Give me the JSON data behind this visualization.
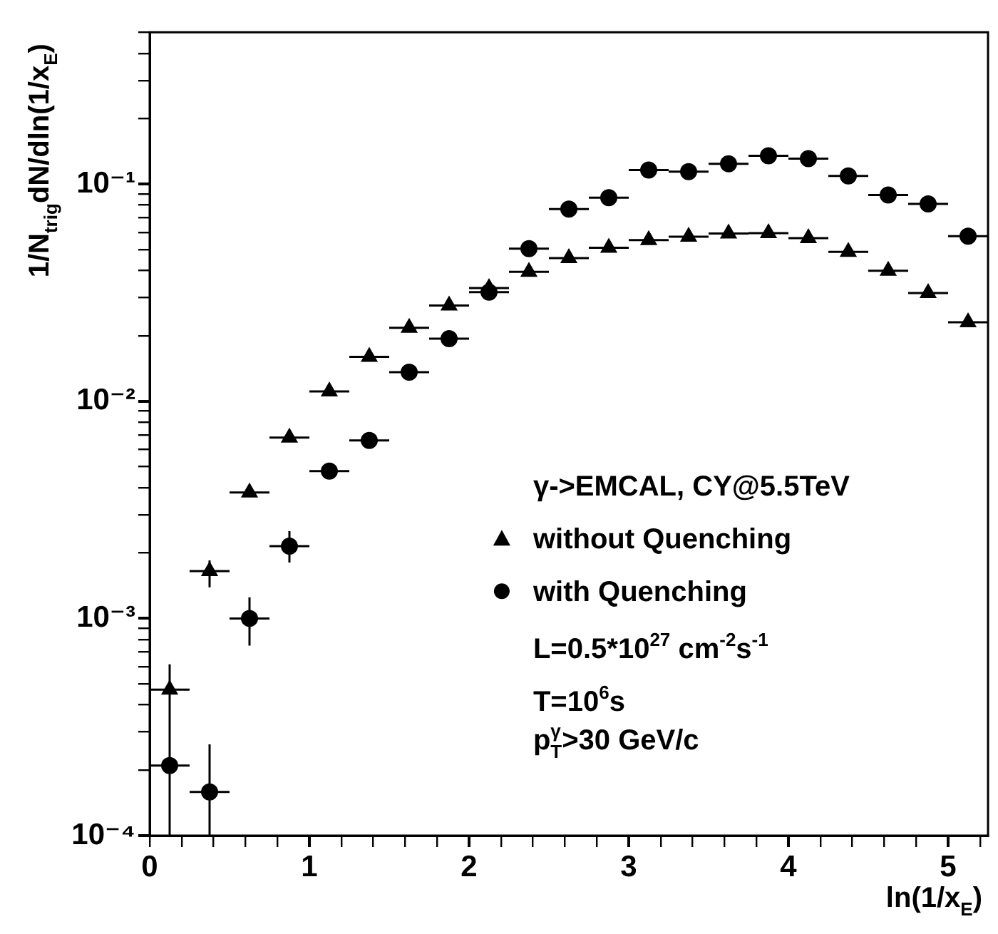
{
  "chart_data": {
    "type": "scatter",
    "xlabel": "ln(1/x$_{E}$)",
    "ylabel": "1/N$_{trig}$dN/dln(1/x$_{E}$)",
    "legend_title": "γ->EMCAL, CY@5.5TeV",
    "legend": "right",
    "grid": false,
    "log": "y",
    "xlim": [
      0,
      5.25
    ],
    "ylim": [
      0.0001,
      0.5
    ],
    "xticks": [
      0,
      {
        "value": 0.2,
        "label": null
      },
      {
        "value": 0.4,
        "label": null
      },
      {
        "value": 0.6,
        "label": null
      },
      {
        "value": 0.8,
        "label": null
      },
      1,
      {
        "value": 1.2,
        "label": null
      },
      {
        "value": 1.4,
        "label": null
      },
      {
        "value": 1.6,
        "label": null
      },
      {
        "value": 1.8,
        "label": null
      },
      2,
      {
        "value": 2.2,
        "label": null
      },
      {
        "value": 2.4,
        "label": null
      },
      {
        "value": 2.6,
        "label": null
      },
      {
        "value": 2.8,
        "label": null
      },
      3,
      {
        "value": 3.2,
        "label": null
      },
      {
        "value": 3.4,
        "label": null
      },
      {
        "value": 3.6,
        "label": null
      },
      {
        "value": 3.8,
        "label": null
      },
      4,
      {
        "value": 4.2,
        "label": null
      },
      {
        "value": 4.4,
        "label": null
      },
      {
        "value": 4.6,
        "label": null
      },
      {
        "value": 4.8,
        "label": null
      },
      5,
      {
        "value": 5.2,
        "label": null
      }
    ],
    "yticks": [
      {
        "value": 0.0001,
        "label": "10⁻⁴"
      },
      {
        "value": 0.0002,
        "label": null
      },
      {
        "value": 0.0003,
        "label": null
      },
      {
        "value": 0.0004,
        "label": null
      },
      {
        "value": 0.0005,
        "label": null
      },
      {
        "value": 0.0006,
        "label": null
      },
      {
        "value": 0.0007,
        "label": null
      },
      {
        "value": 0.0008,
        "label": null
      },
      {
        "value": 0.0009,
        "label": null
      },
      {
        "value": 0.001,
        "label": "10⁻³"
      },
      {
        "value": 0.002,
        "label": null
      },
      {
        "value": 0.003,
        "label": null
      },
      {
        "value": 0.004,
        "label": null
      },
      {
        "value": 0.005,
        "label": null
      },
      {
        "value": 0.006,
        "label": null
      },
      {
        "value": 0.007,
        "label": null
      },
      {
        "value": 0.008,
        "label": null
      },
      {
        "value": 0.009,
        "label": null
      },
      {
        "value": 0.01,
        "label": "10⁻²"
      },
      {
        "value": 0.02,
        "label": null
      },
      {
        "value": 0.03,
        "label": null
      },
      {
        "value": 0.04,
        "label": null
      },
      {
        "value": 0.05,
        "label": null
      },
      {
        "value": 0.06,
        "label": null
      },
      {
        "value": 0.07,
        "label": null
      },
      {
        "value": 0.08,
        "label": null
      },
      {
        "value": 0.09,
        "label": null
      },
      {
        "value": 0.1,
        "label": "10⁻¹"
      },
      {
        "value": 0.2,
        "label": null
      },
      {
        "value": 0.3,
        "label": null
      },
      {
        "value": 0.4,
        "label": null
      },
      {
        "value": 0.5,
        "label": null
      }
    ],
    "x": [
      0.125,
      0.375,
      0.625,
      0.875,
      1.125,
      1.375,
      1.625,
      1.875,
      2.125,
      2.375,
      2.625,
      2.875,
      3.125,
      3.375,
      3.625,
      3.875,
      4.125,
      4.375,
      4.625,
      4.875,
      5.125
    ],
    "series": [
      {
        "name": "without Quenching",
        "color": "#000000",
        "marker": "triangle",
        "values": [
          0.00047,
          0.00165,
          0.0038,
          0.0068,
          0.0111,
          0.016,
          0.0218,
          0.0276,
          0.0332,
          0.0394,
          0.0456,
          0.0509,
          0.0552,
          0.0572,
          0.0592,
          0.0594,
          0.0564,
          0.0487,
          0.0399,
          0.0315,
          0.0231
        ],
        "errors": [
          [
            0.0001,
            0.000615
          ],
          [
            0.00139,
            0.00185
          ],
          null,
          null,
          null,
          null,
          null,
          null,
          null,
          null,
          null,
          null,
          null,
          null,
          null,
          null,
          null,
          null,
          null,
          null,
          null
        ],
        "xerrors": [
          0.125,
          0.125,
          0.125,
          0.125,
          0.125,
          0.125,
          0.125,
          0.125,
          0.125,
          0.125,
          0.125,
          0.125,
          0.125,
          0.125,
          0.125,
          0.125,
          0.125,
          0.125,
          0.125,
          0.125,
          0.125
        ]
      },
      {
        "name": "with Quenching",
        "color": "#000000",
        "marker": "circle",
        "values": [
          0.00021,
          0.000159,
          0.001,
          0.00215,
          0.00477,
          0.0066,
          0.0136,
          0.0194,
          0.0318,
          0.0504,
          0.0767,
          0.0865,
          0.116,
          0.114,
          0.124,
          0.135,
          0.131,
          0.109,
          0.089,
          0.081,
          0.0575
        ],
        "errors": [
          null,
          [
            0.0001,
            0.000263
          ],
          [
            0.00075,
            0.00125
          ],
          [
            0.00181,
            0.00252
          ],
          null,
          null,
          null,
          null,
          null,
          null,
          null,
          null,
          null,
          null,
          null,
          null,
          null,
          null,
          null,
          null,
          null
        ],
        "xerrors": [
          0.125,
          0.125,
          0.125,
          0.125,
          0.125,
          0.125,
          0.125,
          0.125,
          0.125,
          0.125,
          0.125,
          0.125,
          0.125,
          0.125,
          0.125,
          0.125,
          0.125,
          0.125,
          0.125,
          0.125,
          0.125
        ]
      }
    ],
    "annotations": [
      "L=0.5*10$^{27}$ cm$^{-2}$s$^{-1}$",
      "T=10$^{6}$s",
      "p$_{T}$$^{γ}$>30 GeV/c"
    ]
  }
}
